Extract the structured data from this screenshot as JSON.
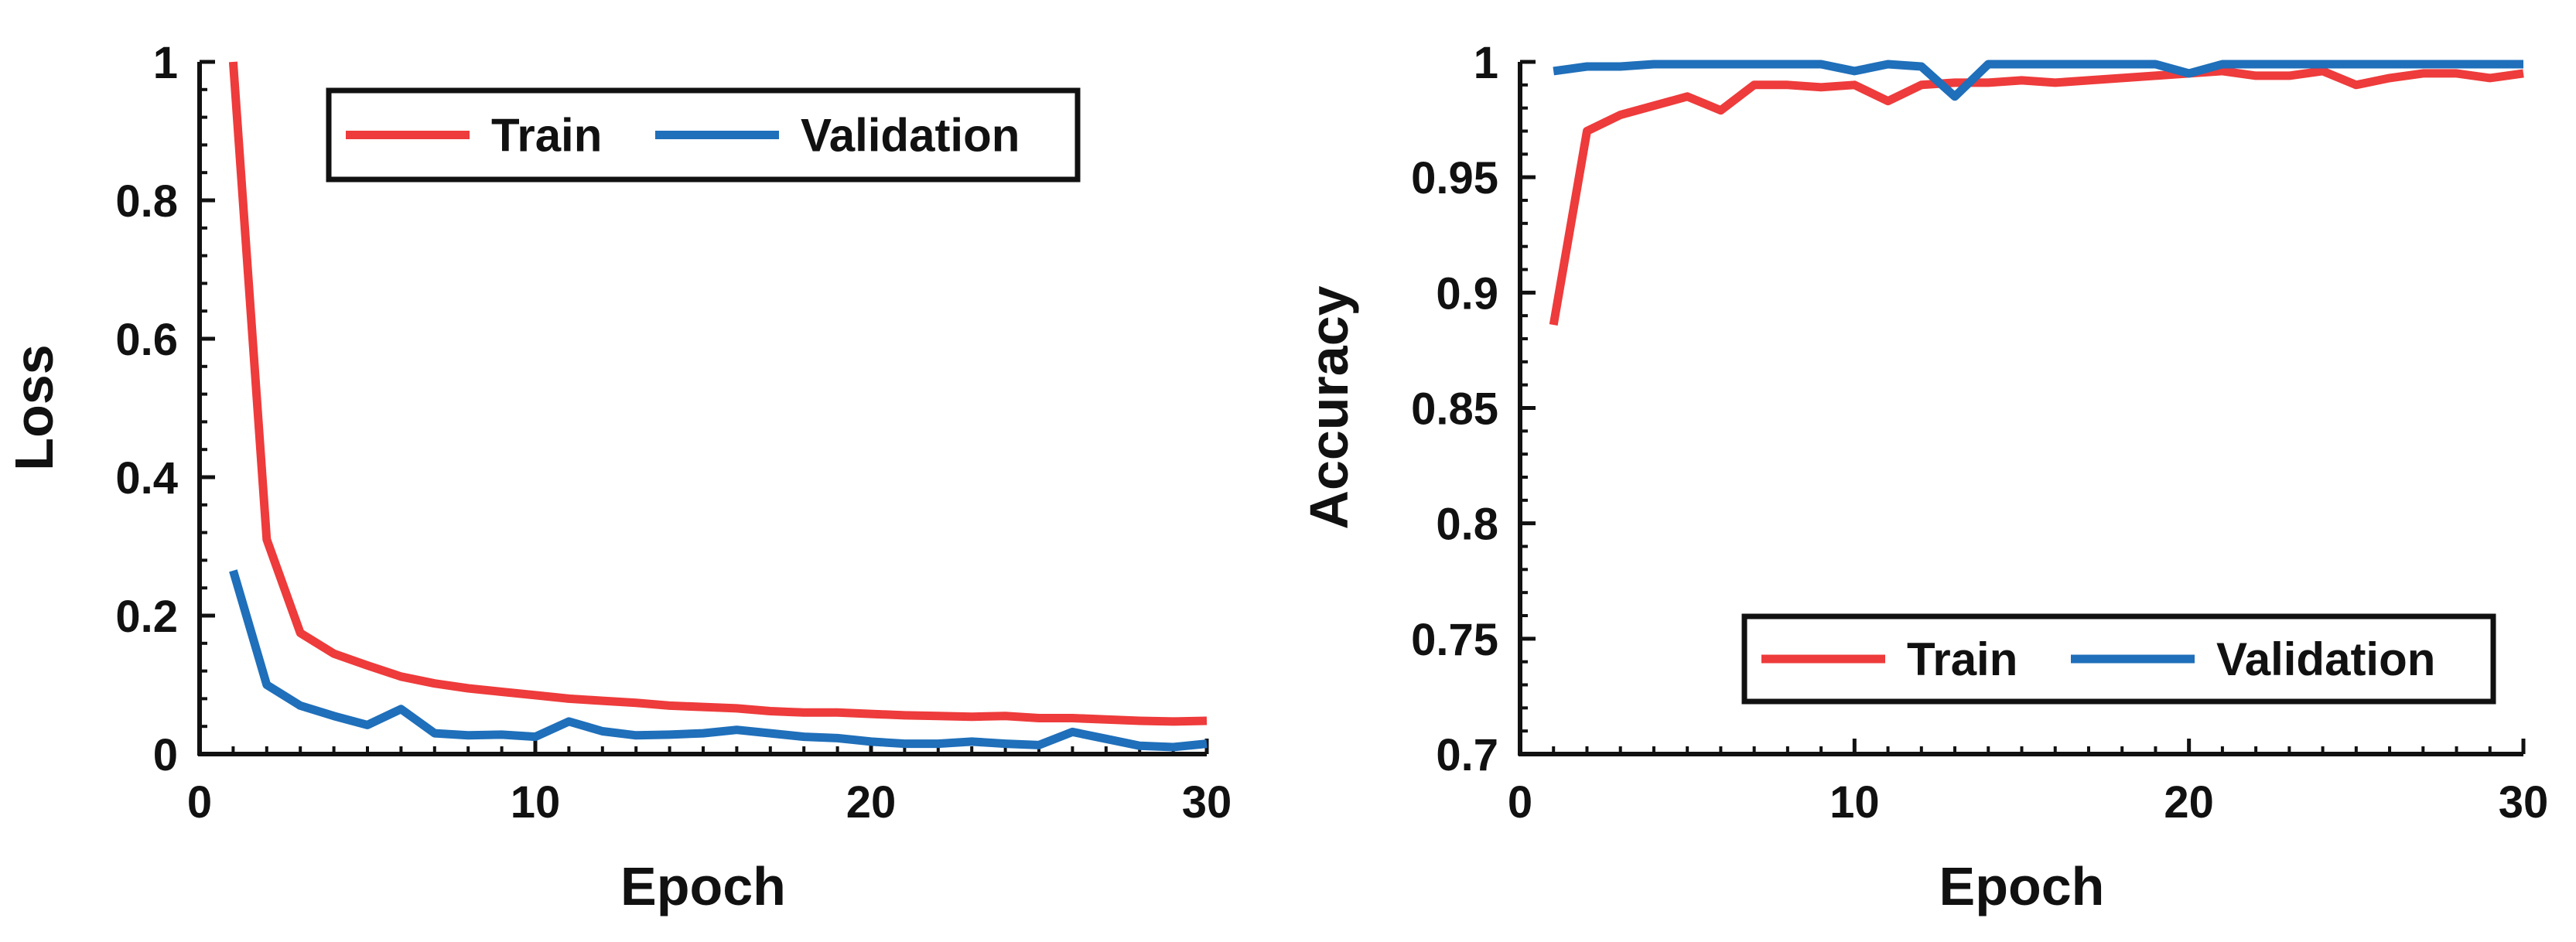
{
  "chart_data": [
    {
      "type": "line",
      "title": "",
      "xlabel": "Epoch",
      "ylabel": "Loss",
      "xlim": [
        0,
        30
      ],
      "ylim": [
        0,
        1
      ],
      "xticks": [
        0,
        10,
        20,
        30
      ],
      "xtick_labels": [
        "0",
        "10",
        "20",
        "30"
      ],
      "yticks": [
        0,
        0.2,
        0.4,
        0.6,
        0.8,
        1
      ],
      "ytick_labels": [
        "0",
        "0.2",
        "0.4",
        "0.6",
        "0.8",
        "1"
      ],
      "legend_position": "top",
      "x": [
        1,
        2,
        3,
        4,
        5,
        6,
        7,
        8,
        9,
        10,
        11,
        12,
        13,
        14,
        15,
        16,
        17,
        18,
        19,
        20,
        21,
        22,
        23,
        24,
        25,
        26,
        27,
        28,
        29,
        30
      ],
      "series": [
        {
          "name": "Train",
          "color": "#ee3b3b",
          "values": [
            1.0,
            0.31,
            0.175,
            0.145,
            0.128,
            0.112,
            0.102,
            0.095,
            0.09,
            0.085,
            0.08,
            0.077,
            0.074,
            0.07,
            0.068,
            0.066,
            0.062,
            0.06,
            0.06,
            0.058,
            0.056,
            0.055,
            0.054,
            0.055,
            0.052,
            0.052,
            0.05,
            0.048,
            0.047,
            0.048
          ]
        },
        {
          "name": "Validation",
          "color": "#1f6fba",
          "values": [
            0.265,
            0.1,
            0.07,
            0.055,
            0.042,
            0.065,
            0.03,
            0.027,
            0.028,
            0.025,
            0.047,
            0.033,
            0.027,
            0.028,
            0.03,
            0.035,
            0.03,
            0.025,
            0.023,
            0.018,
            0.015,
            0.015,
            0.018,
            0.015,
            0.013,
            0.032,
            0.022,
            0.012,
            0.01,
            0.015
          ]
        }
      ]
    },
    {
      "type": "line",
      "title": "",
      "xlabel": "Epoch",
      "ylabel": "Accuracy",
      "xlim": [
        0,
        30
      ],
      "ylim": [
        0.7,
        1
      ],
      "xticks": [
        0,
        10,
        20,
        30
      ],
      "xtick_labels": [
        "0",
        "10",
        "20",
        "30"
      ],
      "yticks": [
        0.7,
        0.75,
        0.8,
        0.85,
        0.9,
        0.95,
        1
      ],
      "ytick_labels": [
        "0.7",
        "0.75",
        "0.8",
        "0.85",
        "0.9",
        "0.95",
        "1"
      ],
      "legend_position": "bottom-right",
      "x": [
        1,
        2,
        3,
        4,
        5,
        6,
        7,
        8,
        9,
        10,
        11,
        12,
        13,
        14,
        15,
        16,
        17,
        18,
        19,
        20,
        21,
        22,
        23,
        24,
        25,
        26,
        27,
        28,
        29,
        30
      ],
      "series": [
        {
          "name": "Train",
          "color": "#ee3b3b",
          "values": [
            0.886,
            0.97,
            0.977,
            0.981,
            0.985,
            0.979,
            0.99,
            0.99,
            0.989,
            0.99,
            0.983,
            0.99,
            0.991,
            0.991,
            0.992,
            0.991,
            0.992,
            0.993,
            0.994,
            0.995,
            0.996,
            0.994,
            0.994,
            0.996,
            0.99,
            0.993,
            0.995,
            0.995,
            0.993,
            0.995
          ]
        },
        {
          "name": "Validation",
          "color": "#1f6fba",
          "values": [
            0.996,
            0.998,
            0.998,
            0.999,
            0.999,
            0.999,
            0.999,
            0.999,
            0.999,
            0.996,
            0.999,
            0.998,
            0.985,
            0.999,
            0.999,
            0.999,
            0.999,
            0.999,
            0.999,
            0.995,
            0.999,
            0.999,
            0.999,
            0.999,
            0.999,
            0.999,
            0.999,
            0.999,
            0.999,
            0.999
          ]
        }
      ]
    }
  ]
}
